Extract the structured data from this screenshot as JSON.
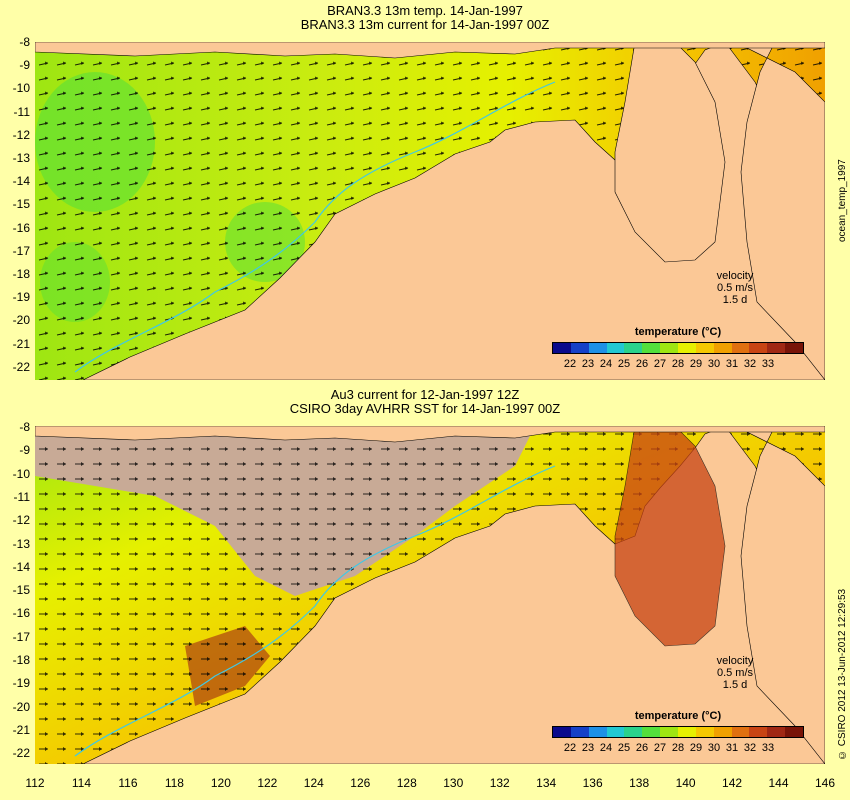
{
  "top": {
    "title1": "BRAN3.3 13m temp. 14-Jan-1997",
    "title2": "BRAN3.3 13m current for 14-Jan-1997 00Z",
    "side_label": "ocean_temp_1997",
    "velocity_label": "velocity",
    "velocity_scale": "0.5 m/s",
    "velocity_time": "1.5 d"
  },
  "bottom": {
    "title1": "Au3 current for 12-Jan-1997 12Z",
    "title2": "CSIRO 3day AVHRR SST for 14-Jan-1997 00Z",
    "side_label": "© CSIRO 2012  13-Jun-2012 12:29:53",
    "velocity_label": "velocity",
    "velocity_scale": "0.5 m/s",
    "velocity_time": "1.5 d"
  },
  "legend": {
    "title": "temperature (°C)",
    "labels": [
      "22",
      "23",
      "24",
      "25",
      "26",
      "27",
      "28",
      "29",
      "30",
      "31",
      "32",
      "33"
    ],
    "colors": [
      "#0a0a8c",
      "#1540c8",
      "#1e90e6",
      "#22c8d2",
      "#2ad28c",
      "#52e03c",
      "#9ee612",
      "#e6f000",
      "#f5c800",
      "#f0a000",
      "#e07010",
      "#c84414",
      "#a02814",
      "#781408"
    ]
  },
  "axes": {
    "y_ticks": [
      "-8",
      "-9",
      "-10",
      "-11",
      "-12",
      "-13",
      "-14",
      "-15",
      "-16",
      "-17",
      "-18",
      "-19",
      "-20",
      "-21",
      "-22"
    ],
    "x_ticks": [
      "112",
      "114",
      "116",
      "118",
      "120",
      "122",
      "124",
      "126",
      "128",
      "130",
      "132",
      "134",
      "136",
      "138",
      "140",
      "142",
      "144",
      "146"
    ]
  },
  "colors": {
    "land": "#fbc896",
    "background": "#ffffa8",
    "no_data": "#c8aa96",
    "contour": "#40c8e6"
  }
}
